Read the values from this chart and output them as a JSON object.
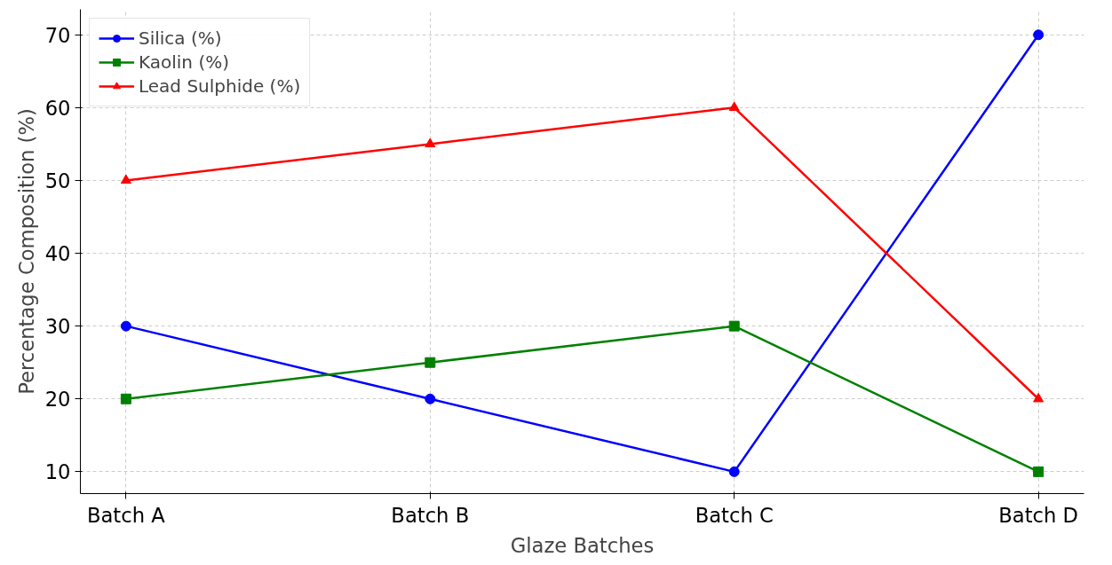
{
  "chart_data": {
    "type": "line",
    "xlabel": "Glaze Batches",
    "ylabel": "Percentage Composition (%)",
    "categories": [
      "Batch A",
      "Batch B",
      "Batch C",
      "Batch D"
    ],
    "series": [
      {
        "name": "Silica (%)",
        "color": "#0000ff",
        "marker": "circle",
        "values": [
          30,
          20,
          10,
          70
        ]
      },
      {
        "name": "Kaolin (%)",
        "color": "#008000",
        "marker": "square",
        "values": [
          20,
          25,
          30,
          10
        ]
      },
      {
        "name": "Lead Sulphide (%)",
        "color": "#ff0000",
        "marker": "triangle",
        "values": [
          50,
          55,
          60,
          20
        ]
      }
    ],
    "ylim": [
      7,
      73.5
    ],
    "yticks": [
      10,
      20,
      30,
      40,
      50,
      60,
      70
    ],
    "grid": true,
    "legend": "top left",
    "line_style": "solid"
  }
}
